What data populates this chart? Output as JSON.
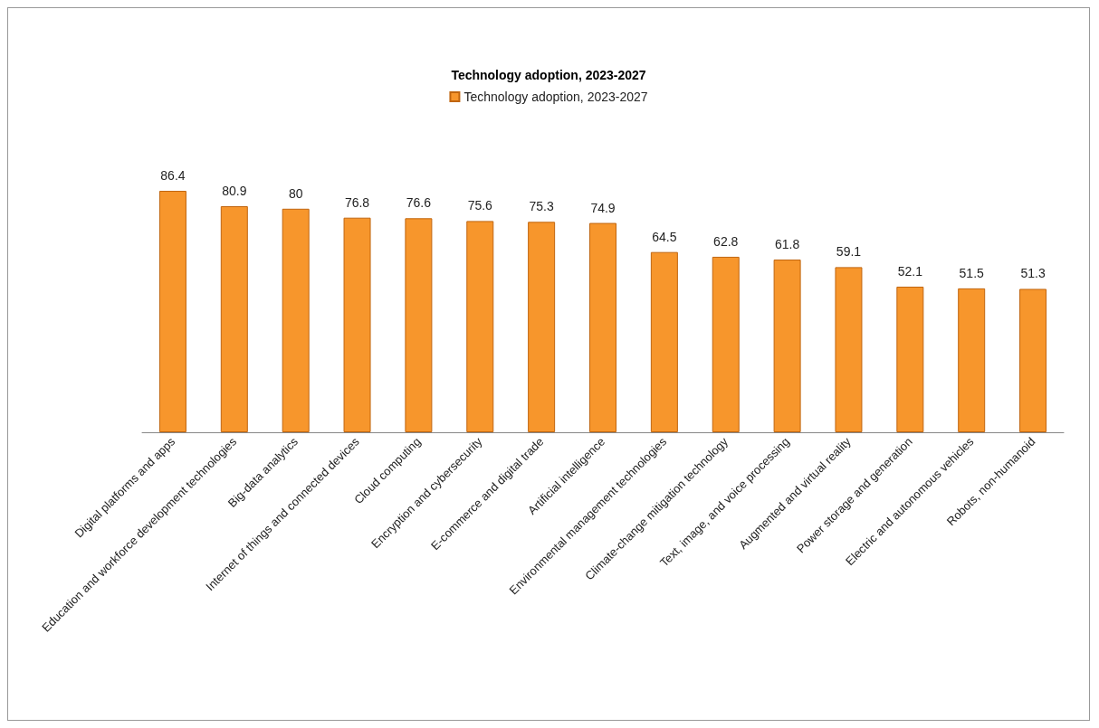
{
  "chart_data": {
    "type": "bar",
    "title": "Technology adoption, 2023-2027",
    "categories": [
      "Digital platforms and apps",
      "Education and workforce development technologies",
      "Big-data analytics",
      "Internet of things and connected devices",
      "Cloud computing",
      "Encryption and cybersecurity",
      "E-commerce and digital trade",
      "Artificial intelligence",
      "Environmental management technologies",
      "Climate-change mitigation technology",
      "Text, image, and voice processing",
      "Augmented and virtual reality",
      "Power storage and generation",
      "Electric and autonomous vehicles",
      "Robots, non-humanoid"
    ],
    "series": [
      {
        "name": "Technology adoption, 2023-2027",
        "color": "#f7962c",
        "values": [
          86.4,
          80.9,
          80,
          76.8,
          76.6,
          75.6,
          75.3,
          74.9,
          64.5,
          62.8,
          61.8,
          59.1,
          52.1,
          51.5,
          51.3
        ]
      }
    ],
    "data_labels": true,
    "legend": "top",
    "grid": false
  }
}
